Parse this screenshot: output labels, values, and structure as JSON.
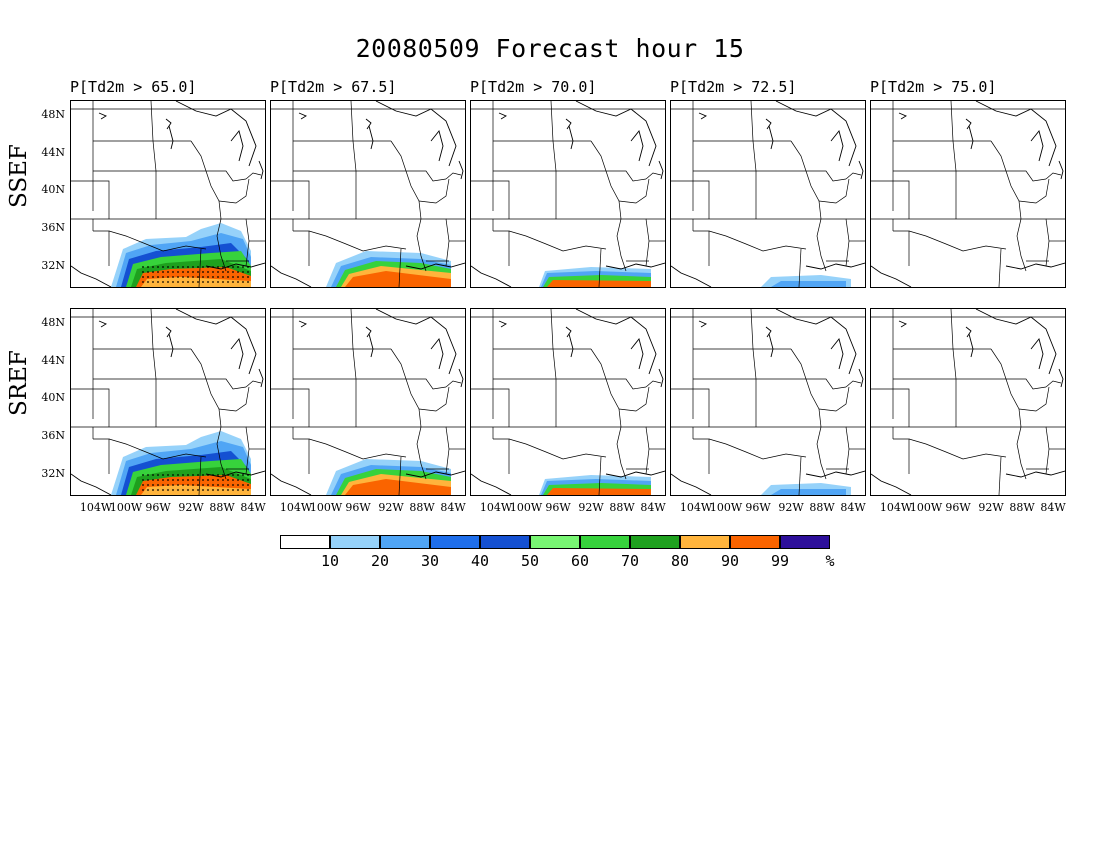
{
  "title": "20080509 Forecast hour 15",
  "columns": [
    {
      "label": "P[Td2m > 65.0]"
    },
    {
      "label": "P[Td2m > 67.5]"
    },
    {
      "label": "P[Td2m > 70.0]"
    },
    {
      "label": "P[Td2m > 72.5]"
    },
    {
      "label": "P[Td2m > 75.0]"
    }
  ],
  "rows": [
    {
      "label": "SSEF"
    },
    {
      "label": "SREF"
    }
  ],
  "lat_ticks": [
    "48N",
    "44N",
    "40N",
    "36N",
    "32N"
  ],
  "lon_ticks": [
    "104W",
    "100W",
    "96W",
    "92W",
    "88W",
    "84W"
  ],
  "colorbar": {
    "colors": [
      "#ffffff",
      "#96d2fa",
      "#50a5f5",
      "#1e6eeb",
      "#1450d2",
      "#78f573",
      "#37d23c",
      "#1ea01e",
      "#ffb43c",
      "#fa6400",
      "#2d0f9b"
    ],
    "labels": [
      "10",
      "20",
      "30",
      "40",
      "50",
      "60",
      "70",
      "80",
      "90",
      "99",
      "%"
    ]
  },
  "panels": [
    {
      "row": 0,
      "col": 0,
      "coverage": "high",
      "stipple": true
    },
    {
      "row": 0,
      "col": 1,
      "coverage": "med"
    },
    {
      "row": 0,
      "col": 2,
      "coverage": "low"
    },
    {
      "row": 0,
      "col": 3,
      "coverage": "trace"
    },
    {
      "row": 0,
      "col": 4,
      "coverage": "none"
    },
    {
      "row": 1,
      "col": 0,
      "coverage": "high",
      "stipple": true
    },
    {
      "row": 1,
      "col": 1,
      "coverage": "med"
    },
    {
      "row": 1,
      "col": 2,
      "coverage": "low"
    },
    {
      "row": 1,
      "col": 3,
      "coverage": "trace"
    },
    {
      "row": 1,
      "col": 4,
      "coverage": "none"
    }
  ]
}
